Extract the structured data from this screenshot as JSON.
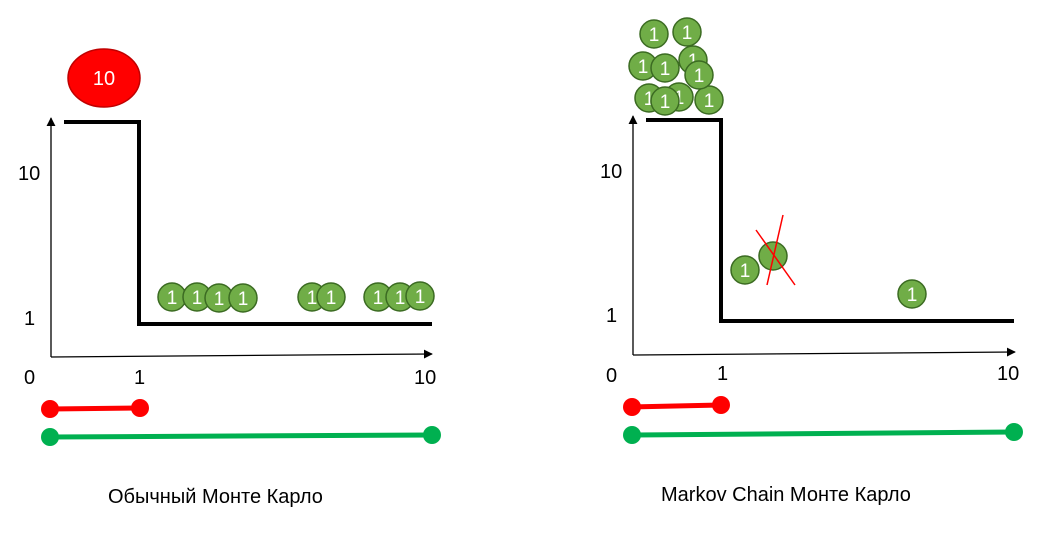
{
  "colors": {
    "green_fill": "#70AD47",
    "green_stroke": "#3B6B22",
    "red": "#FF0000",
    "green_line": "#00B050",
    "axis": "#000000"
  },
  "left_panel": {
    "caption": "Обычный Монте Карло",
    "ticks": {
      "x0": "0",
      "x1": "1",
      "x10": "10",
      "y10": "10",
      "y1": "1"
    },
    "big_disc": "10",
    "sample_label": "1"
  },
  "right_panel": {
    "caption": "Markov Chain Монте Карло",
    "ticks": {
      "x0": "0",
      "x1": "1",
      "x10": "10",
      "y10": "10",
      "y1": "1"
    },
    "sample_label": "1"
  }
}
